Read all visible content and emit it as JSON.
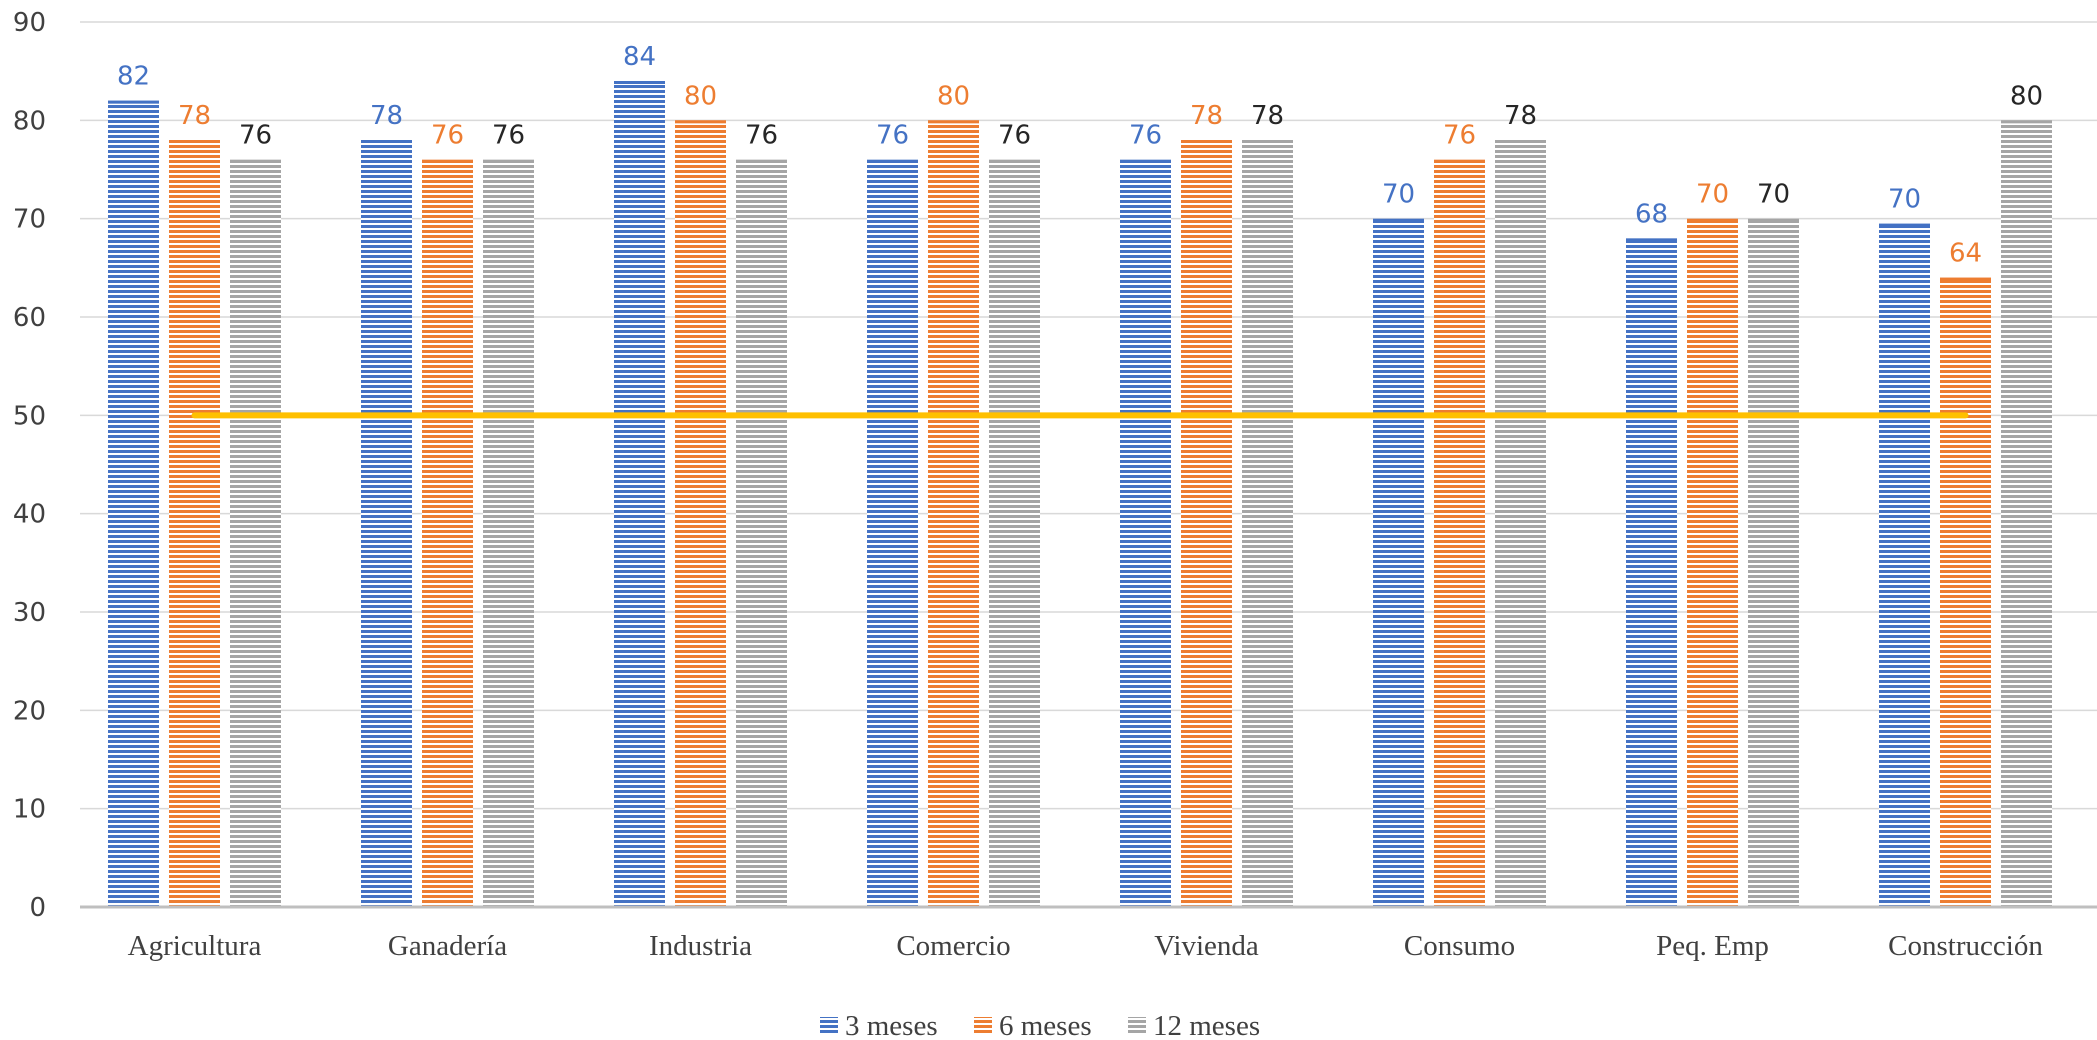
{
  "chart_data": {
    "type": "bar",
    "title": "",
    "xlabel": "",
    "ylabel": "",
    "ylim": [
      0,
      90
    ],
    "yticks": [
      0,
      10,
      20,
      30,
      40,
      50,
      60,
      70,
      80,
      90
    ],
    "grid": true,
    "legend_position": "bottom-center",
    "categories": [
      "Agricultura",
      "Ganadería",
      "Industria",
      "Comercio",
      "Vivienda",
      "Consumo",
      "Peq. Emp",
      "Construcción"
    ],
    "series": [
      {
        "name": "3 meses",
        "color": "#4472C4",
        "values": [
          82,
          78,
          84,
          76,
          76,
          70,
          68,
          69.5
        ],
        "labels": [
          "82",
          "78",
          "84",
          "76",
          "76",
          "70",
          "68",
          "70"
        ]
      },
      {
        "name": "6 meses",
        "color": "#ED7D31",
        "values": [
          78,
          76,
          80,
          80,
          78,
          76,
          70,
          64
        ],
        "labels": [
          "78",
          "76",
          "80",
          "80",
          "78",
          "76",
          "70",
          "64"
        ]
      },
      {
        "name": "12 meses",
        "color": "#A5A5A5",
        "values": [
          76,
          76,
          76,
          76,
          78,
          78,
          70,
          80
        ],
        "labels": [
          "76",
          "76",
          "76",
          "76",
          "78",
          "78",
          "70",
          "80"
        ]
      }
    ],
    "reference_line": {
      "value": 50,
      "color": "#FFC000"
    },
    "label_colors": {
      "3 meses": "#4472C4",
      "6 meses": "#ED7D31",
      "12 meses": "#262626"
    }
  }
}
